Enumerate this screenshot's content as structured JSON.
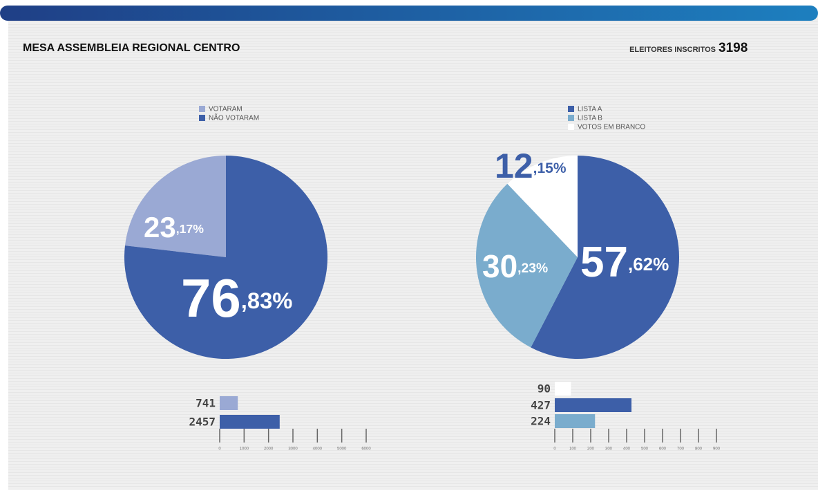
{
  "title": "MESA ASSEMBLEIA REGIONAL CENTRO",
  "registered_label": "ELEITORES INSCRITOS",
  "registered": 3198,
  "chart_data": [
    {
      "type": "pie",
      "categories": [
        "VOTARAM",
        "NÃO VOTARAM"
      ],
      "values": [
        23.17,
        76.83
      ],
      "value_labels": [
        "23,17%",
        "76,83%"
      ],
      "colors": [
        "#9aa9d4",
        "#3d5fa8"
      ]
    },
    {
      "type": "pie",
      "categories": [
        "LISTA A",
        "LISTA B",
        "VOTOS EM BRANCO"
      ],
      "values": [
        57.62,
        30.23,
        12.15
      ],
      "value_labels": [
        "57,62%",
        "30,23%",
        "12,15%"
      ],
      "colors": [
        "#3d5fa8",
        "#7aaccd",
        "#ffffff"
      ]
    },
    {
      "type": "hbar",
      "values": [
        741,
        2457
      ],
      "colors": [
        "#9aa9d4",
        "#3d5fa8"
      ],
      "xlim": [
        0,
        6000
      ],
      "xticks": [
        0,
        1000,
        2000,
        3000,
        4000,
        5000,
        6000
      ]
    },
    {
      "type": "hbar",
      "values": [
        90,
        427,
        224
      ],
      "colors": [
        "#ffffff",
        "#3d5fa8",
        "#7aaccd"
      ],
      "xlim": [
        0,
        900
      ],
      "xticks": [
        0,
        100,
        200,
        300,
        400,
        500,
        600,
        700,
        800,
        900
      ]
    }
  ]
}
